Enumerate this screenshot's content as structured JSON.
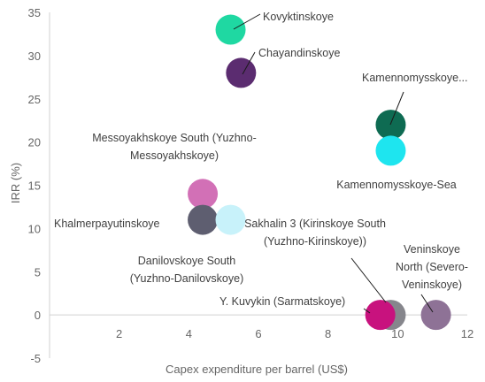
{
  "chart_data": {
    "type": "scatter",
    "xlabel": "Capex expenditure per barrel (US$)",
    "ylabel": "IRR (%)",
    "xlim": [
      0,
      12
    ],
    "ylim": [
      -5,
      35
    ],
    "x_ticks": [
      2,
      4,
      6,
      8,
      10,
      12
    ],
    "y_ticks": [
      -5,
      0,
      5,
      10,
      15,
      20,
      25,
      30,
      35
    ],
    "grid": false,
    "legend": "none",
    "points": [
      {
        "label": [
          "Kovyktinskoye"
        ],
        "x": 5.2,
        "y": 33.0,
        "color": "#1fd8a2"
      },
      {
        "label": [
          "Chayandinskoye"
        ],
        "x": 5.5,
        "y": 28.0,
        "color": "#5b2c70"
      },
      {
        "label": [
          "Kamennomysskoye..."
        ],
        "x": 9.8,
        "y": 22.0,
        "color": "#0e6b52"
      },
      {
        "label": [
          "Kamennomysskoye-Sea"
        ],
        "x": 9.8,
        "y": 19.0,
        "color": "#1ee5ef"
      },
      {
        "label": [
          "Messoyakhskoye South (Yuzhno-",
          "Messoyakhskoye)"
        ],
        "x": 4.4,
        "y": 14.0,
        "color": "#d270b6"
      },
      {
        "label": [
          "Khalmerpayutinskoye"
        ],
        "x": 4.4,
        "y": 11.0,
        "color": "#5e5e70"
      },
      {
        "label": [
          "Sakhalin 3 (Kirinskoye South",
          "(Yuzhno-Kirinskoye))"
        ],
        "x": 5.2,
        "y": 11.0,
        "color": "#c8f2fa"
      },
      {
        "label": [
          "Danilovskoye South",
          "(Yuzhno-Danilovskoye)"
        ],
        "x": 5.2,
        "y": 11.0,
        "color": "#c8f2fa"
      },
      {
        "label": [
          "Veninskoye",
          "North (Severo-",
          "Veninskoye)"
        ],
        "x": 11.1,
        "y": 0.0,
        "color": "#8e7296"
      },
      {
        "label": [
          "Y. Kuvykin (Sarmatskoye)"
        ],
        "x": 9.5,
        "y": 0.0,
        "color": "#c8127e"
      },
      {
        "label": [],
        "x": 9.8,
        "y": 0.0,
        "color": "#86868c"
      }
    ]
  }
}
